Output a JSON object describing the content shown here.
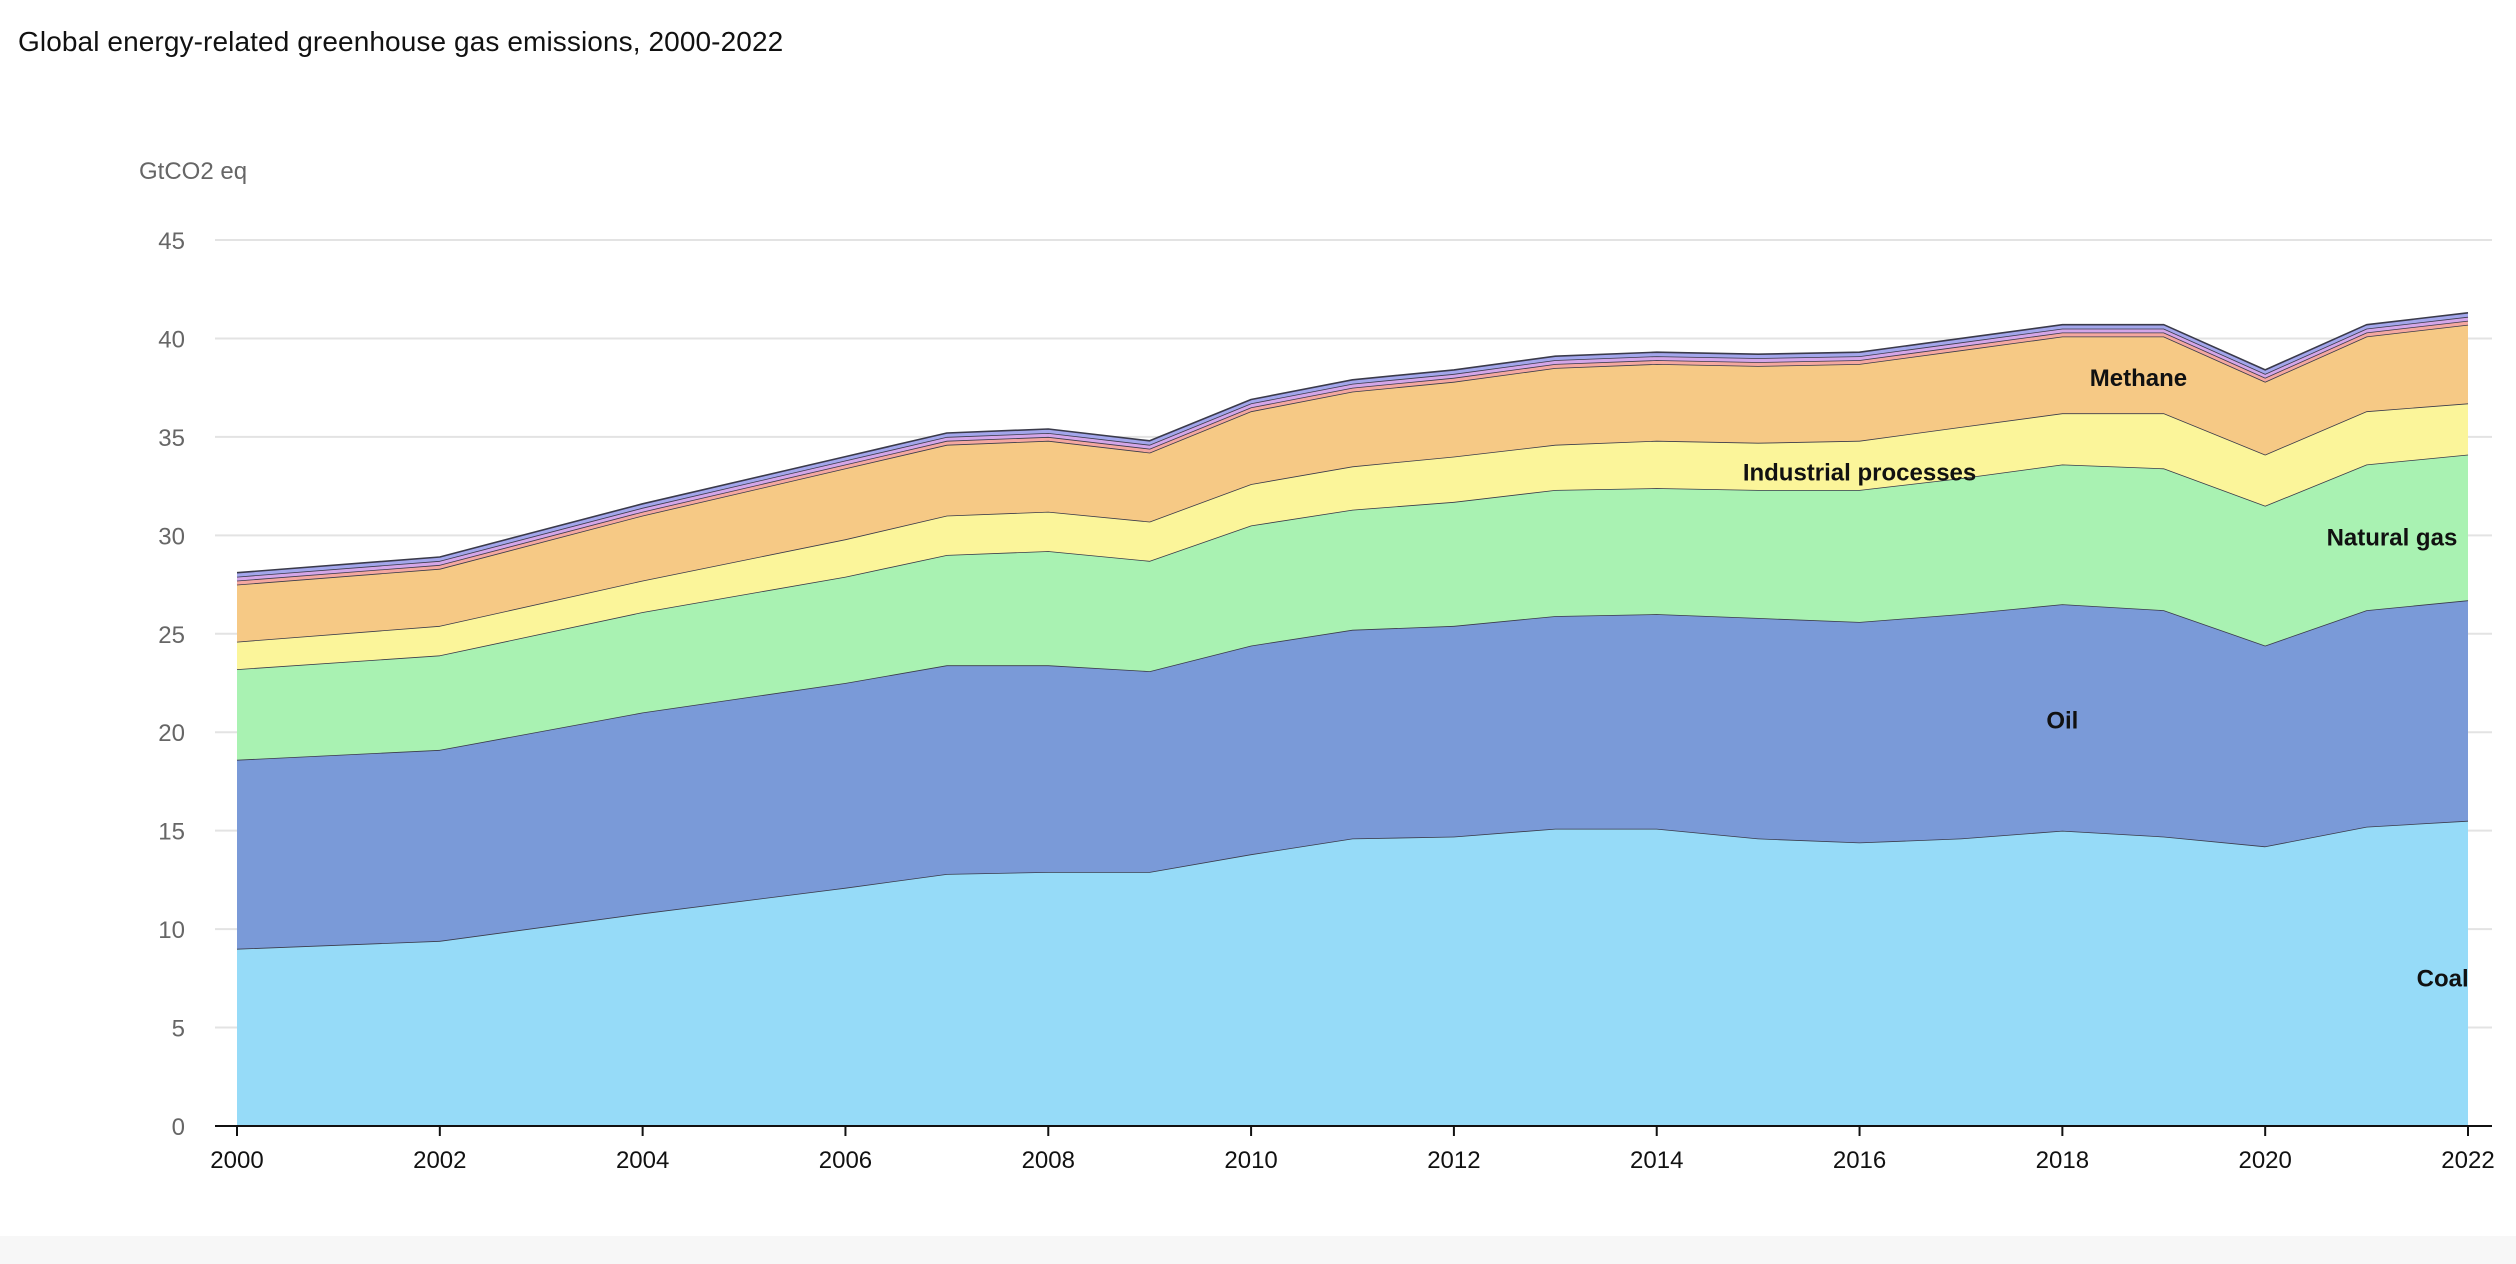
{
  "title": "Global energy-related greenhouse gas emissions, 2000-2022",
  "chart_data": {
    "type": "area",
    "stacked": true,
    "title": "Global energy-related greenhouse gas emissions, 2000-2022",
    "ylabel": "GtCO2 eq",
    "xlabel": "",
    "ylim": [
      0,
      45
    ],
    "yticks": [
      0,
      5,
      10,
      15,
      20,
      25,
      30,
      35,
      40,
      45
    ],
    "xticks": [
      2000,
      2002,
      2004,
      2006,
      2008,
      2010,
      2012,
      2014,
      2016,
      2018,
      2020,
      2022
    ],
    "grid": true,
    "x": [
      2000,
      2002,
      2004,
      2006,
      2007,
      2008,
      2009,
      2010,
      2011,
      2012,
      2013,
      2014,
      2015,
      2016,
      2017,
      2018,
      2019,
      2020,
      2021,
      2022
    ],
    "series": [
      {
        "name": "Coal",
        "color": "#96dbf8",
        "values": [
          9.0,
          9.4,
          10.8,
          12.1,
          12.8,
          12.9,
          12.9,
          13.8,
          14.6,
          14.7,
          15.1,
          15.1,
          14.6,
          14.4,
          14.6,
          15.0,
          14.7,
          14.2,
          15.2,
          15.5
        ]
      },
      {
        "name": "Oil",
        "color": "#7a9ad8",
        "values": [
          9.6,
          9.7,
          10.2,
          10.4,
          10.6,
          10.5,
          10.2,
          10.6,
          10.6,
          10.7,
          10.8,
          10.9,
          11.2,
          11.2,
          11.4,
          11.5,
          11.5,
          10.2,
          11.0,
          11.2
        ]
      },
      {
        "name": "Natural gas",
        "color": "#a9f2b2",
        "values": [
          4.6,
          4.8,
          5.1,
          5.4,
          5.6,
          5.8,
          5.6,
          6.1,
          6.1,
          6.3,
          6.4,
          6.4,
          6.5,
          6.7,
          6.9,
          7.1,
          7.2,
          7.1,
          7.4,
          7.4
        ]
      },
      {
        "name": "Industrial processes",
        "color": "#fbf59a",
        "values": [
          1.4,
          1.5,
          1.6,
          1.9,
          2.0,
          2.0,
          2.0,
          2.1,
          2.2,
          2.3,
          2.3,
          2.4,
          2.4,
          2.5,
          2.6,
          2.6,
          2.8,
          2.6,
          2.7,
          2.6
        ]
      },
      {
        "name": "Methane",
        "color": "#f6c985",
        "values": [
          2.9,
          2.9,
          3.3,
          3.6,
          3.6,
          3.6,
          3.5,
          3.7,
          3.8,
          3.8,
          3.9,
          3.9,
          3.9,
          3.9,
          3.9,
          3.9,
          3.9,
          3.7,
          3.8,
          4.0
        ]
      },
      {
        "color": "#f4a7a0",
        "values": [
          0.2,
          0.2,
          0.2,
          0.2,
          0.2,
          0.2,
          0.2,
          0.2,
          0.2,
          0.2,
          0.2,
          0.2,
          0.2,
          0.2,
          0.2,
          0.2,
          0.2,
          0.2,
          0.2,
          0.2
        ]
      },
      {
        "color": "#d4a6e8",
        "values": [
          0.2,
          0.2,
          0.2,
          0.2,
          0.2,
          0.2,
          0.2,
          0.2,
          0.2,
          0.2,
          0.2,
          0.2,
          0.2,
          0.2,
          0.2,
          0.2,
          0.2,
          0.2,
          0.2,
          0.2
        ]
      },
      {
        "color": "#a3a6ec",
        "values": [
          0.2,
          0.2,
          0.2,
          0.2,
          0.2,
          0.2,
          0.2,
          0.2,
          0.2,
          0.2,
          0.2,
          0.2,
          0.2,
          0.2,
          0.2,
          0.2,
          0.2,
          0.2,
          0.2,
          0.2
        ]
      }
    ],
    "annotations": [
      {
        "text": "Methane",
        "x": 2018.75,
        "y": 38.0
      },
      {
        "text": "Industrial processes",
        "x": 2016.0,
        "y": 33.2
      },
      {
        "text": "Natural gas",
        "x": 2021.25,
        "y": 29.9
      },
      {
        "text": "Oil",
        "x": 2018.0,
        "y": 20.6
      },
      {
        "text": "Coal",
        "x": 2021.75,
        "y": 7.5
      }
    ]
  }
}
